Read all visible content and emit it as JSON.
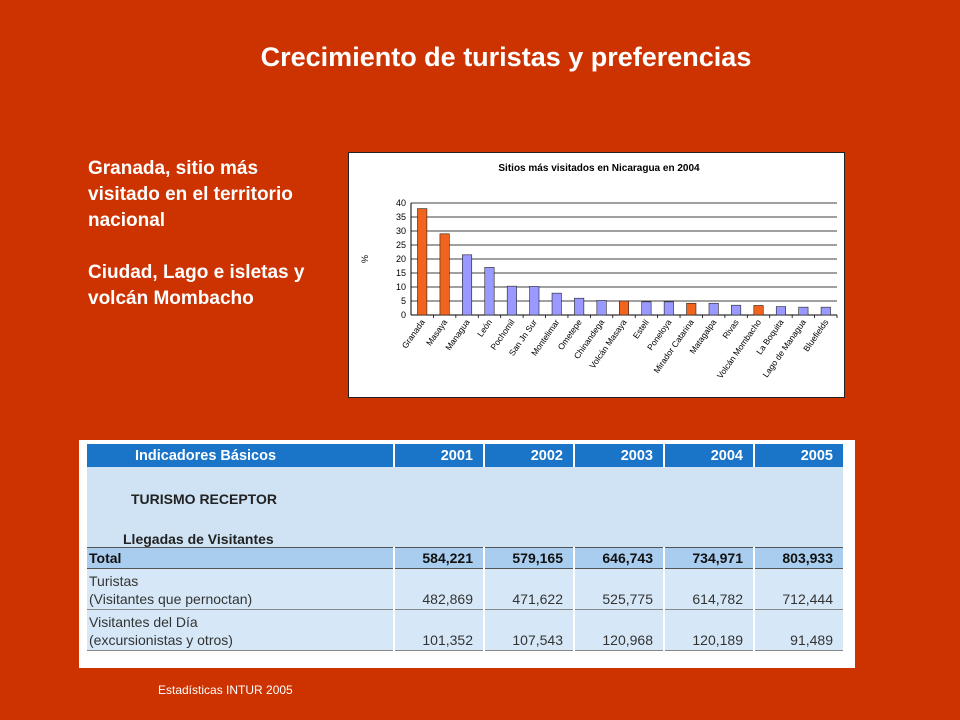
{
  "slide": {
    "title": "Crecimiento de turistas y preferencias",
    "paragraph1": "Granada, sitio más visitado en el territorio nacional",
    "paragraph2": "Ciudad, Lago e isletas y volcán Mombacho",
    "source": "Estadísticas INTUR  2005"
  },
  "chart_data": {
    "type": "bar",
    "title": "Sitios más visitados en Nicaragua en 2004",
    "xlabel": "",
    "ylabel": "%",
    "ylim": [
      0,
      40
    ],
    "yticks": [
      0,
      5,
      10,
      15,
      20,
      25,
      30,
      35,
      40
    ],
    "grid": true,
    "categories": [
      "Granada",
      "Masaya",
      "Managua",
      "León",
      "Pochomil",
      "San Jn Sur",
      "Montelimar",
      "Ometepe",
      "Chinandega",
      "Volcán Masaya",
      "Estelí",
      "Poneloya",
      "Mirador Catarina",
      "Matagalpa",
      "Rivas",
      "Volcán Mombacho",
      "La Boquita",
      "Lago de Managua",
      "Bluefields"
    ],
    "values": [
      38,
      29,
      21.5,
      17,
      10.3,
      10.2,
      7.8,
      6,
      5.2,
      5,
      4.7,
      4.7,
      4.2,
      4.2,
      3.5,
      3.4,
      3,
      2.8,
      2.8
    ],
    "colors": [
      "#F0641E",
      "#F0641E",
      "#9999FF",
      "#9999FF",
      "#9999FF",
      "#9999FF",
      "#9999FF",
      "#9999FF",
      "#9999FF",
      "#F0641E",
      "#9999FF",
      "#9999FF",
      "#F0641E",
      "#9999FF",
      "#9999FF",
      "#F0641E",
      "#9999FF",
      "#9999FF",
      "#9999FF"
    ]
  },
  "table": {
    "header": [
      "Indicadores Básicos",
      "2001",
      "2002",
      "2003",
      "2004",
      "2005"
    ],
    "section": "TURISMO RECEPTOR",
    "subsection": "Llegadas de Visitantes",
    "total": {
      "label": "Total",
      "values": [
        "584,221",
        "579,165",
        "646,743",
        "734,971",
        "803,933"
      ]
    },
    "turistas": {
      "label1": "Turistas",
      "label2": "(Visitantes que pernoctan)",
      "values": [
        "482,869",
        "471,622",
        "525,775",
        "614,782",
        "712,444"
      ]
    },
    "dia": {
      "label1": "Visitantes del Día",
      "label2": "(excursionistas y otros)",
      "values": [
        "101,352",
        "107,543",
        "120,968",
        "120,189",
        "91,489"
      ]
    }
  }
}
